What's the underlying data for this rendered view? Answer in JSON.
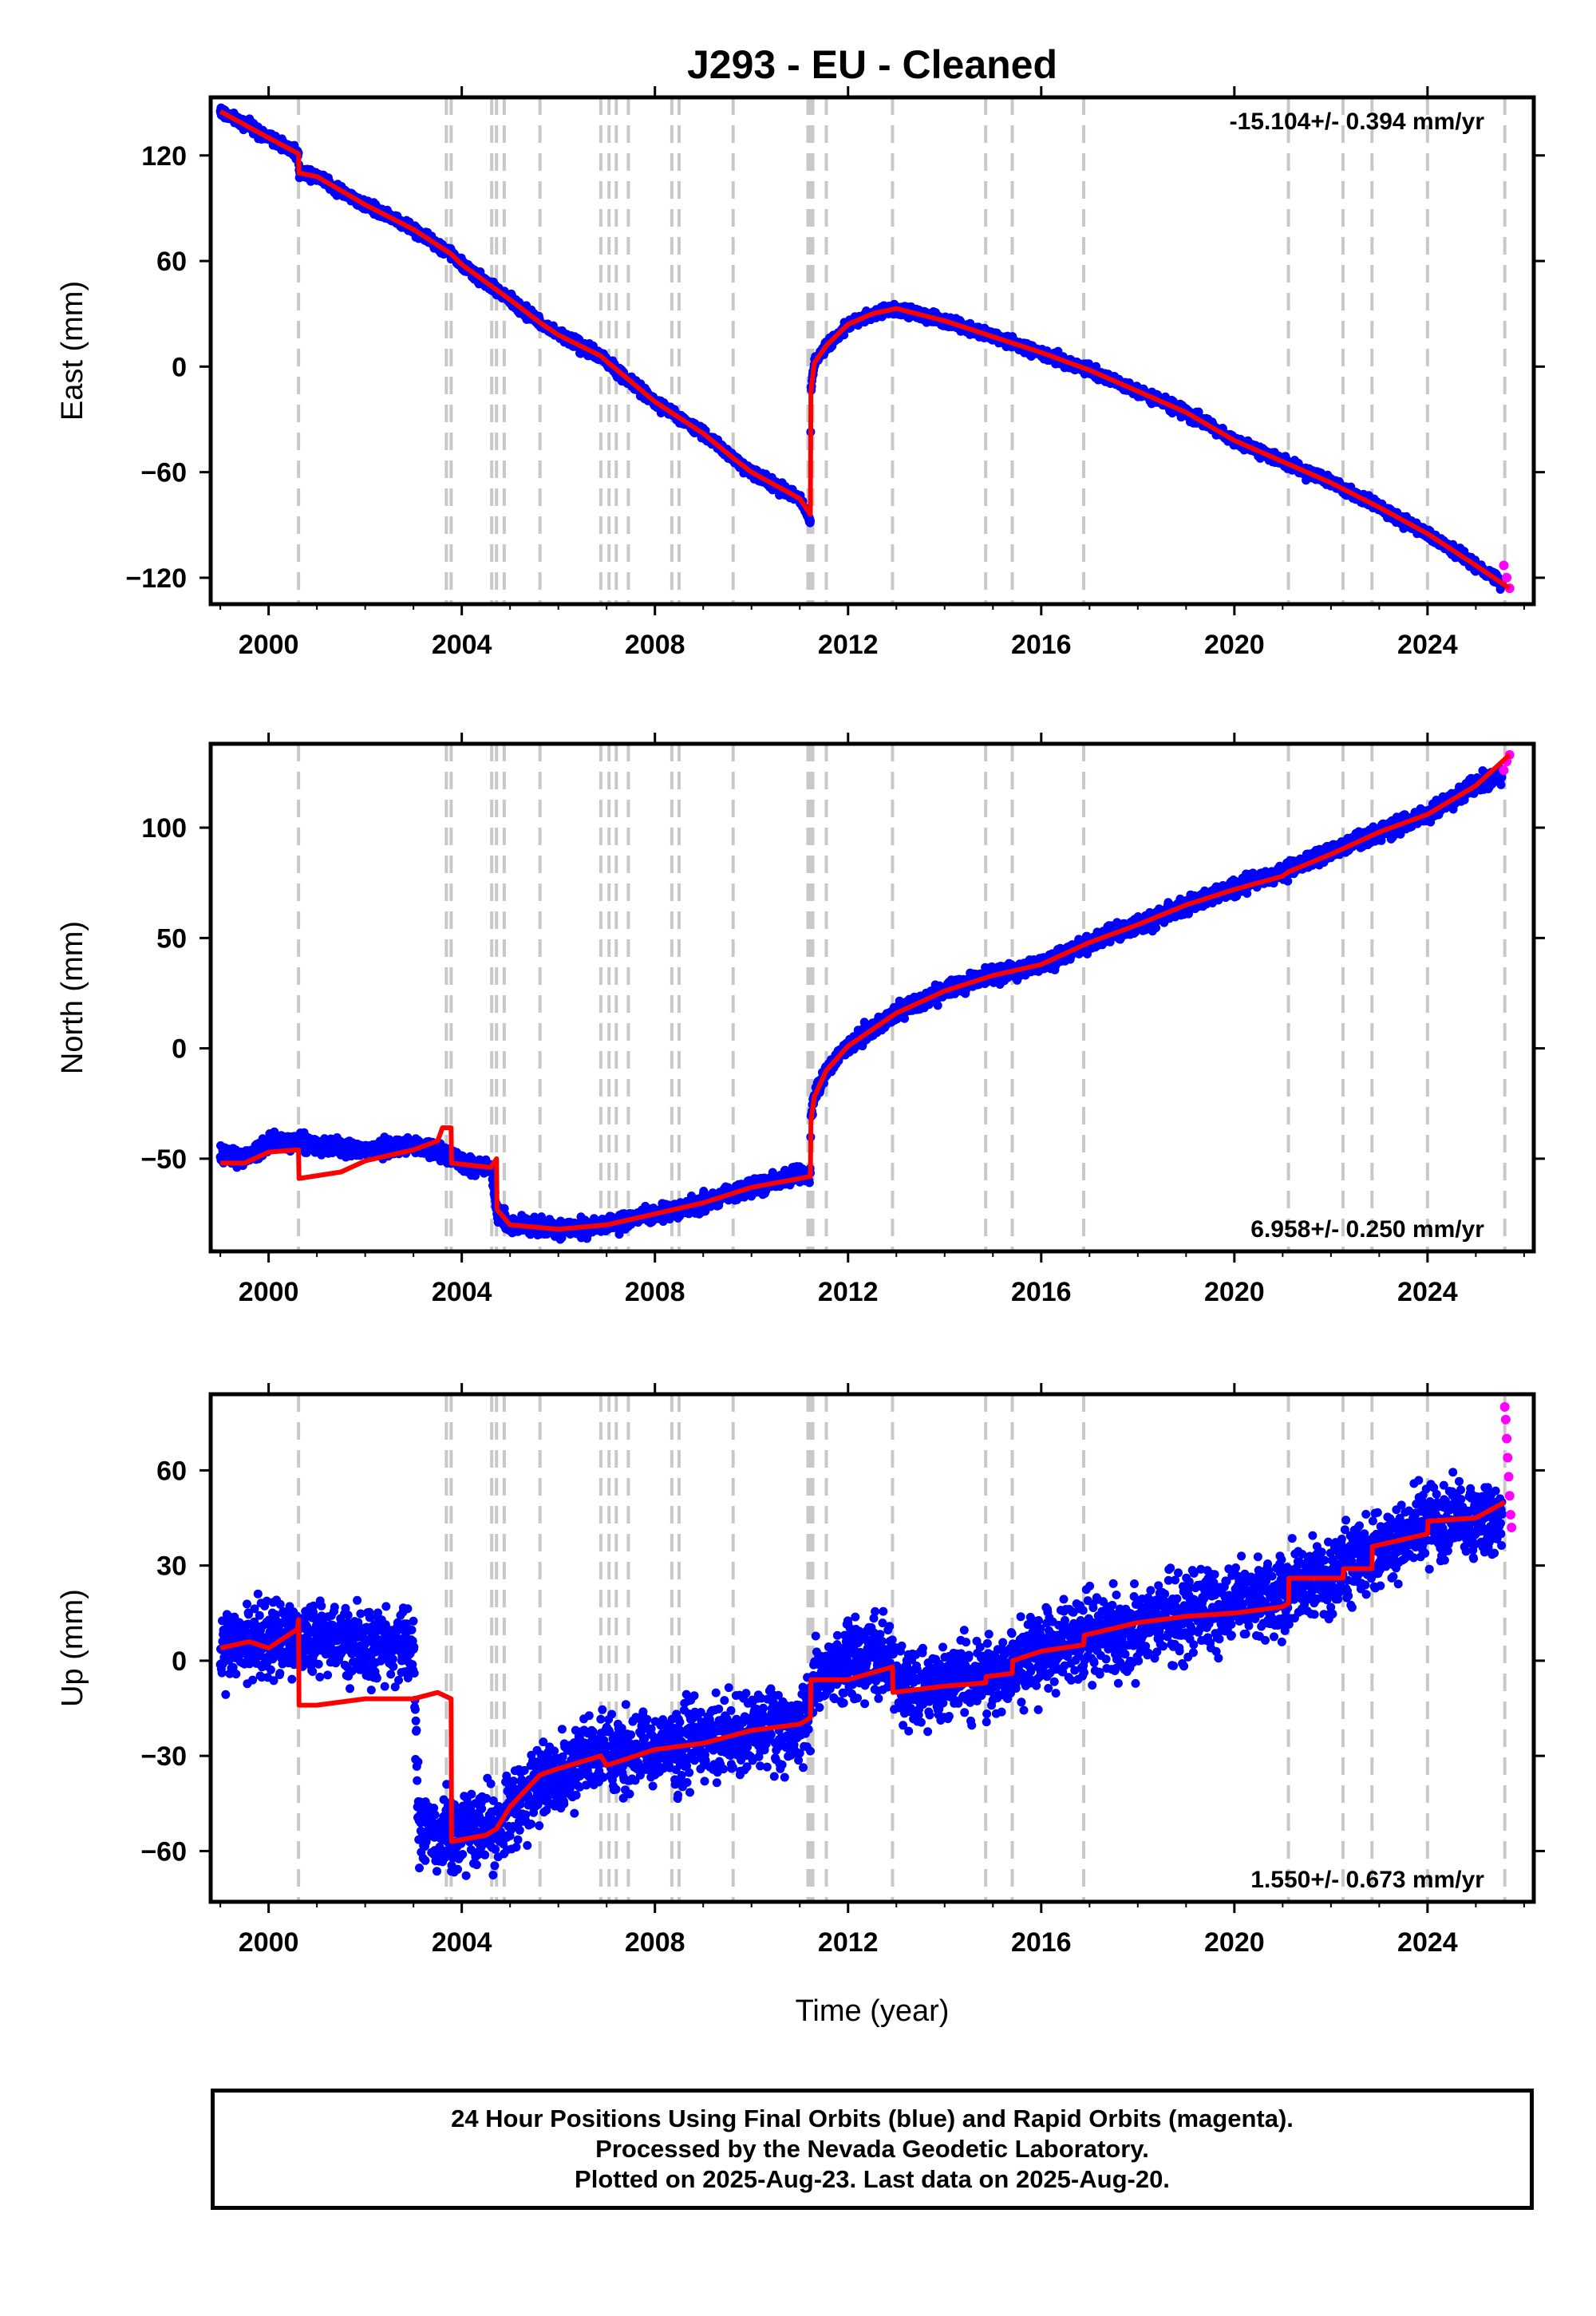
{
  "chart_data": {
    "type": "scatter",
    "title": "J293  - EU - Cleaned",
    "xlabel": "Time (year)",
    "xlim": [
      1998.8,
      2026.2
    ],
    "xticks": [
      "2000",
      "2004",
      "2008",
      "2012",
      "2016",
      "2020",
      "2024"
    ],
    "steps": [
      2000.62,
      2003.68,
      2003.78,
      2004.62,
      2004.72,
      2004.88,
      2005.62,
      2006.88,
      2007.05,
      2007.2,
      2007.45,
      2008.35,
      2008.5,
      2009.62,
      2011.17,
      2011.22,
      2011.27,
      2011.55,
      2012.92,
      2014.85,
      2015.4,
      2016.88,
      2021.12,
      2022.25,
      2022.85,
      2024.0,
      2025.6
    ],
    "colors": {
      "final": "#0000ff",
      "rapid": "#ff00ff",
      "model": "#ff0000",
      "steps": "#c8c8c8"
    },
    "panels": [
      {
        "name": "east",
        "ylabel": "East (mm)",
        "ylim": [
          -135,
          153
        ],
        "yticks": [
          "120",
          "60",
          "0",
          "−60",
          "−120"
        ],
        "rate": "-15.104+/- 0.394 mm/yr",
        "rate_position": "top-right",
        "final_series": [
          [
            1999.0,
            145
          ],
          [
            2000.0,
            130
          ],
          [
            2000.62,
            121
          ],
          [
            2000.63,
            110
          ],
          [
            2001.0,
            108
          ],
          [
            2002.0,
            92
          ],
          [
            2003.0,
            78
          ],
          [
            2003.78,
            64
          ],
          [
            2004.0,
            58
          ],
          [
            2004.7,
            44
          ],
          [
            2005.0,
            38
          ],
          [
            2005.62,
            25
          ],
          [
            2006.0,
            18
          ],
          [
            2006.88,
            6
          ],
          [
            2007.0,
            3
          ],
          [
            2008.0,
            -20
          ],
          [
            2009.0,
            -38
          ],
          [
            2009.62,
            -52
          ],
          [
            2010.0,
            -60
          ],
          [
            2011.0,
            -75
          ],
          [
            2011.22,
            -88
          ],
          [
            2011.23,
            -14
          ],
          [
            2011.3,
            2
          ],
          [
            2011.55,
            12
          ],
          [
            2012.0,
            24
          ],
          [
            2012.5,
            30
          ],
          [
            2013.0,
            33
          ],
          [
            2014.0,
            26
          ],
          [
            2015.0,
            17
          ],
          [
            2016.0,
            8
          ],
          [
            2017.0,
            -2
          ],
          [
            2018.0,
            -14
          ],
          [
            2019.0,
            -26
          ],
          [
            2020.0,
            -42
          ],
          [
            2021.0,
            -54
          ],
          [
            2022.0,
            -66
          ],
          [
            2023.0,
            -80
          ],
          [
            2024.0,
            -95
          ],
          [
            2025.0,
            -113
          ],
          [
            2025.55,
            -123
          ]
        ],
        "rapid_series": [
          [
            2025.58,
            -113
          ],
          [
            2025.64,
            -120
          ],
          [
            2025.7,
            -126
          ]
        ],
        "model_series": [
          [
            1999.0,
            145
          ],
          [
            2000.0,
            130
          ],
          [
            2000.62,
            121
          ],
          [
            2000.63,
            110
          ],
          [
            2001.0,
            108
          ],
          [
            2002.0,
            92
          ],
          [
            2003.0,
            78
          ],
          [
            2003.78,
            64
          ],
          [
            2004.0,
            58
          ],
          [
            2004.7,
            44
          ],
          [
            2005.0,
            38
          ],
          [
            2005.62,
            25
          ],
          [
            2006.0,
            18
          ],
          [
            2006.88,
            6
          ],
          [
            2007.0,
            3
          ],
          [
            2008.0,
            -20
          ],
          [
            2009.0,
            -38
          ],
          [
            2009.62,
            -52
          ],
          [
            2010.0,
            -60
          ],
          [
            2011.0,
            -75
          ],
          [
            2011.22,
            -84
          ],
          [
            2011.23,
            -14
          ],
          [
            2011.3,
            2
          ],
          [
            2011.55,
            12
          ],
          [
            2012.0,
            24
          ],
          [
            2012.5,
            30
          ],
          [
            2013.0,
            33
          ],
          [
            2014.0,
            26
          ],
          [
            2015.0,
            17
          ],
          [
            2016.0,
            8
          ],
          [
            2017.0,
            -2
          ],
          [
            2018.0,
            -14
          ],
          [
            2019.0,
            -26
          ],
          [
            2020.0,
            -42
          ],
          [
            2021.0,
            -54
          ],
          [
            2022.0,
            -66
          ],
          [
            2023.0,
            -80
          ],
          [
            2024.0,
            -95
          ],
          [
            2025.0,
            -113
          ],
          [
            2025.7,
            -126
          ]
        ]
      },
      {
        "name": "north",
        "ylabel": "North (mm)",
        "ylim": [
          -92,
          138
        ],
        "yticks": [
          "100",
          "50",
          "0",
          "−50"
        ],
        "rate": "6.958+/- 0.250 mm/yr",
        "rate_position": "bottom-right",
        "final_series": [
          [
            1999.0,
            -48
          ],
          [
            1999.5,
            -50
          ],
          [
            2000.0,
            -43
          ],
          [
            2000.62,
            -42
          ],
          [
            2001.0,
            -44
          ],
          [
            2002.0,
            -46
          ],
          [
            2003.0,
            -44
          ],
          [
            2003.5,
            -46
          ],
          [
            2004.0,
            -52
          ],
          [
            2004.6,
            -54
          ],
          [
            2004.75,
            -76
          ],
          [
            2005.0,
            -80
          ],
          [
            2006.0,
            -82
          ],
          [
            2007.0,
            -80
          ],
          [
            2008.0,
            -75
          ],
          [
            2009.0,
            -70
          ],
          [
            2010.0,
            -63
          ],
          [
            2011.0,
            -57
          ],
          [
            2011.22,
            -58
          ],
          [
            2011.23,
            -33
          ],
          [
            2011.3,
            -22
          ],
          [
            2011.55,
            -10
          ],
          [
            2012.0,
            1
          ],
          [
            2013.0,
            16
          ],
          [
            2014.0,
            26
          ],
          [
            2015.0,
            33
          ],
          [
            2016.0,
            38
          ],
          [
            2017.0,
            48
          ],
          [
            2018.0,
            56
          ],
          [
            2019.0,
            65
          ],
          [
            2020.0,
            73
          ],
          [
            2021.0,
            80
          ],
          [
            2022.0,
            89
          ],
          [
            2023.0,
            98
          ],
          [
            2024.0,
            106
          ],
          [
            2025.0,
            119
          ],
          [
            2025.55,
            124
          ]
        ],
        "rapid_series": [
          [
            2025.58,
            126
          ],
          [
            2025.64,
            130
          ],
          [
            2025.7,
            133
          ]
        ],
        "model_series": [
          [
            1999.0,
            -52
          ],
          [
            1999.5,
            -52
          ],
          [
            2000.0,
            -47
          ],
          [
            2000.62,
            -46
          ],
          [
            2000.63,
            -59
          ],
          [
            2001.5,
            -56
          ],
          [
            2002.0,
            -51
          ],
          [
            2003.0,
            -46
          ],
          [
            2003.5,
            -42
          ],
          [
            2003.6,
            -36
          ],
          [
            2003.78,
            -36
          ],
          [
            2003.79,
            -52
          ],
          [
            2004.6,
            -54
          ],
          [
            2004.72,
            -50
          ],
          [
            2004.73,
            -73
          ],
          [
            2005.0,
            -80
          ],
          [
            2006.0,
            -82
          ],
          [
            2007.0,
            -80
          ],
          [
            2008.0,
            -75
          ],
          [
            2009.0,
            -70
          ],
          [
            2010.0,
            -63
          ],
          [
            2011.0,
            -59
          ],
          [
            2011.22,
            -58
          ],
          [
            2011.23,
            -33
          ],
          [
            2011.3,
            -22
          ],
          [
            2011.55,
            -10
          ],
          [
            2012.0,
            1
          ],
          [
            2013.0,
            16
          ],
          [
            2014.0,
            26
          ],
          [
            2015.0,
            33
          ],
          [
            2016.0,
            38
          ],
          [
            2017.0,
            48
          ],
          [
            2018.0,
            56
          ],
          [
            2019.0,
            65
          ],
          [
            2020.0,
            72
          ],
          [
            2021.0,
            78
          ],
          [
            2021.12,
            80
          ],
          [
            2022.0,
            88
          ],
          [
            2023.0,
            98
          ],
          [
            2024.0,
            106
          ],
          [
            2025.0,
            119
          ],
          [
            2025.7,
            133
          ]
        ]
      },
      {
        "name": "up",
        "ylabel": "Up (mm)",
        "ylim": [
          -76,
          84
        ],
        "yticks": [
          "60",
          "30",
          "0",
          "−30",
          "−60"
        ],
        "rate": "1.550+/- 0.673 mm/yr",
        "rate_position": "bottom-right",
        "final_series": [
          [
            1999.0,
            5
          ],
          [
            2000.0,
            7
          ],
          [
            2000.62,
            8
          ],
          [
            2001.0,
            6
          ],
          [
            2002.0,
            5
          ],
          [
            2003.0,
            4
          ],
          [
            2003.1,
            -52
          ],
          [
            2003.78,
            -55
          ],
          [
            2004.0,
            -55
          ],
          [
            2004.7,
            -53
          ],
          [
            2005.0,
            -46
          ],
          [
            2005.62,
            -38
          ],
          [
            2006.0,
            -35
          ],
          [
            2007.0,
            -30
          ],
          [
            2008.0,
            -28
          ],
          [
            2009.0,
            -25
          ],
          [
            2010.0,
            -22
          ],
          [
            2011.0,
            -20
          ],
          [
            2011.22,
            -16
          ],
          [
            2011.3,
            -5
          ],
          [
            2012.0,
            0
          ],
          [
            2012.92,
            1
          ],
          [
            2013.0,
            -10
          ],
          [
            2014.0,
            -8
          ],
          [
            2015.0,
            -5
          ],
          [
            2015.4,
            0
          ],
          [
            2016.0,
            3
          ],
          [
            2017.0,
            8
          ],
          [
            2018.0,
            10
          ],
          [
            2019.0,
            15
          ],
          [
            2020.0,
            17
          ],
          [
            2021.0,
            20
          ],
          [
            2021.12,
            24
          ],
          [
            2022.0,
            27
          ],
          [
            2023.0,
            35
          ],
          [
            2024.0,
            44
          ],
          [
            2025.0,
            44
          ],
          [
            2025.55,
            43
          ]
        ],
        "rapid_series": [
          [
            2025.6,
            80
          ],
          [
            2025.62,
            76
          ],
          [
            2025.64,
            70
          ],
          [
            2025.66,
            64
          ],
          [
            2025.68,
            58
          ],
          [
            2025.7,
            52
          ],
          [
            2025.72,
            46
          ],
          [
            2025.74,
            42
          ]
        ],
        "model_series": [
          [
            1999.0,
            4
          ],
          [
            1999.6,
            6
          ],
          [
            2000.0,
            4
          ],
          [
            2000.6,
            10
          ],
          [
            2000.62,
            13
          ],
          [
            2000.63,
            -14
          ],
          [
            2001.0,
            -14
          ],
          [
            2002.0,
            -12
          ],
          [
            2003.0,
            -12
          ],
          [
            2003.5,
            -10
          ],
          [
            2003.78,
            -12
          ],
          [
            2003.79,
            -57
          ],
          [
            2004.5,
            -55
          ],
          [
            2004.72,
            -53
          ],
          [
            2005.0,
            -46
          ],
          [
            2005.62,
            -36
          ],
          [
            2006.0,
            -34
          ],
          [
            2006.88,
            -30
          ],
          [
            2007.0,
            -33
          ],
          [
            2008.0,
            -28
          ],
          [
            2009.0,
            -26
          ],
          [
            2010.0,
            -22
          ],
          [
            2011.0,
            -20
          ],
          [
            2011.22,
            -18
          ],
          [
            2011.23,
            -6
          ],
          [
            2012.0,
            -6
          ],
          [
            2012.92,
            -2
          ],
          [
            2012.93,
            -10
          ],
          [
            2014.0,
            -8
          ],
          [
            2014.85,
            -7
          ],
          [
            2014.86,
            -5
          ],
          [
            2015.4,
            -4
          ],
          [
            2015.41,
            0
          ],
          [
            2016.0,
            3
          ],
          [
            2016.88,
            5
          ],
          [
            2016.89,
            8
          ],
          [
            2018.0,
            12
          ],
          [
            2019.0,
            14
          ],
          [
            2020.0,
            15
          ],
          [
            2021.0,
            17
          ],
          [
            2021.12,
            18
          ],
          [
            2021.13,
            26
          ],
          [
            2022.25,
            26
          ],
          [
            2022.26,
            29
          ],
          [
            2022.85,
            29
          ],
          [
            2022.86,
            36
          ],
          [
            2024.0,
            40
          ],
          [
            2024.01,
            44
          ],
          [
            2025.0,
            45
          ],
          [
            2025.6,
            50
          ]
        ]
      }
    ]
  },
  "footer": {
    "line1": "24 Hour Positions Using Final Orbits (blue) and Rapid Orbits (magenta).",
    "line2": "Processed by the Nevada Geodetic Laboratory.",
    "line3": "Plotted on 2025-Aug-23. Last data on 2025-Aug-20."
  }
}
